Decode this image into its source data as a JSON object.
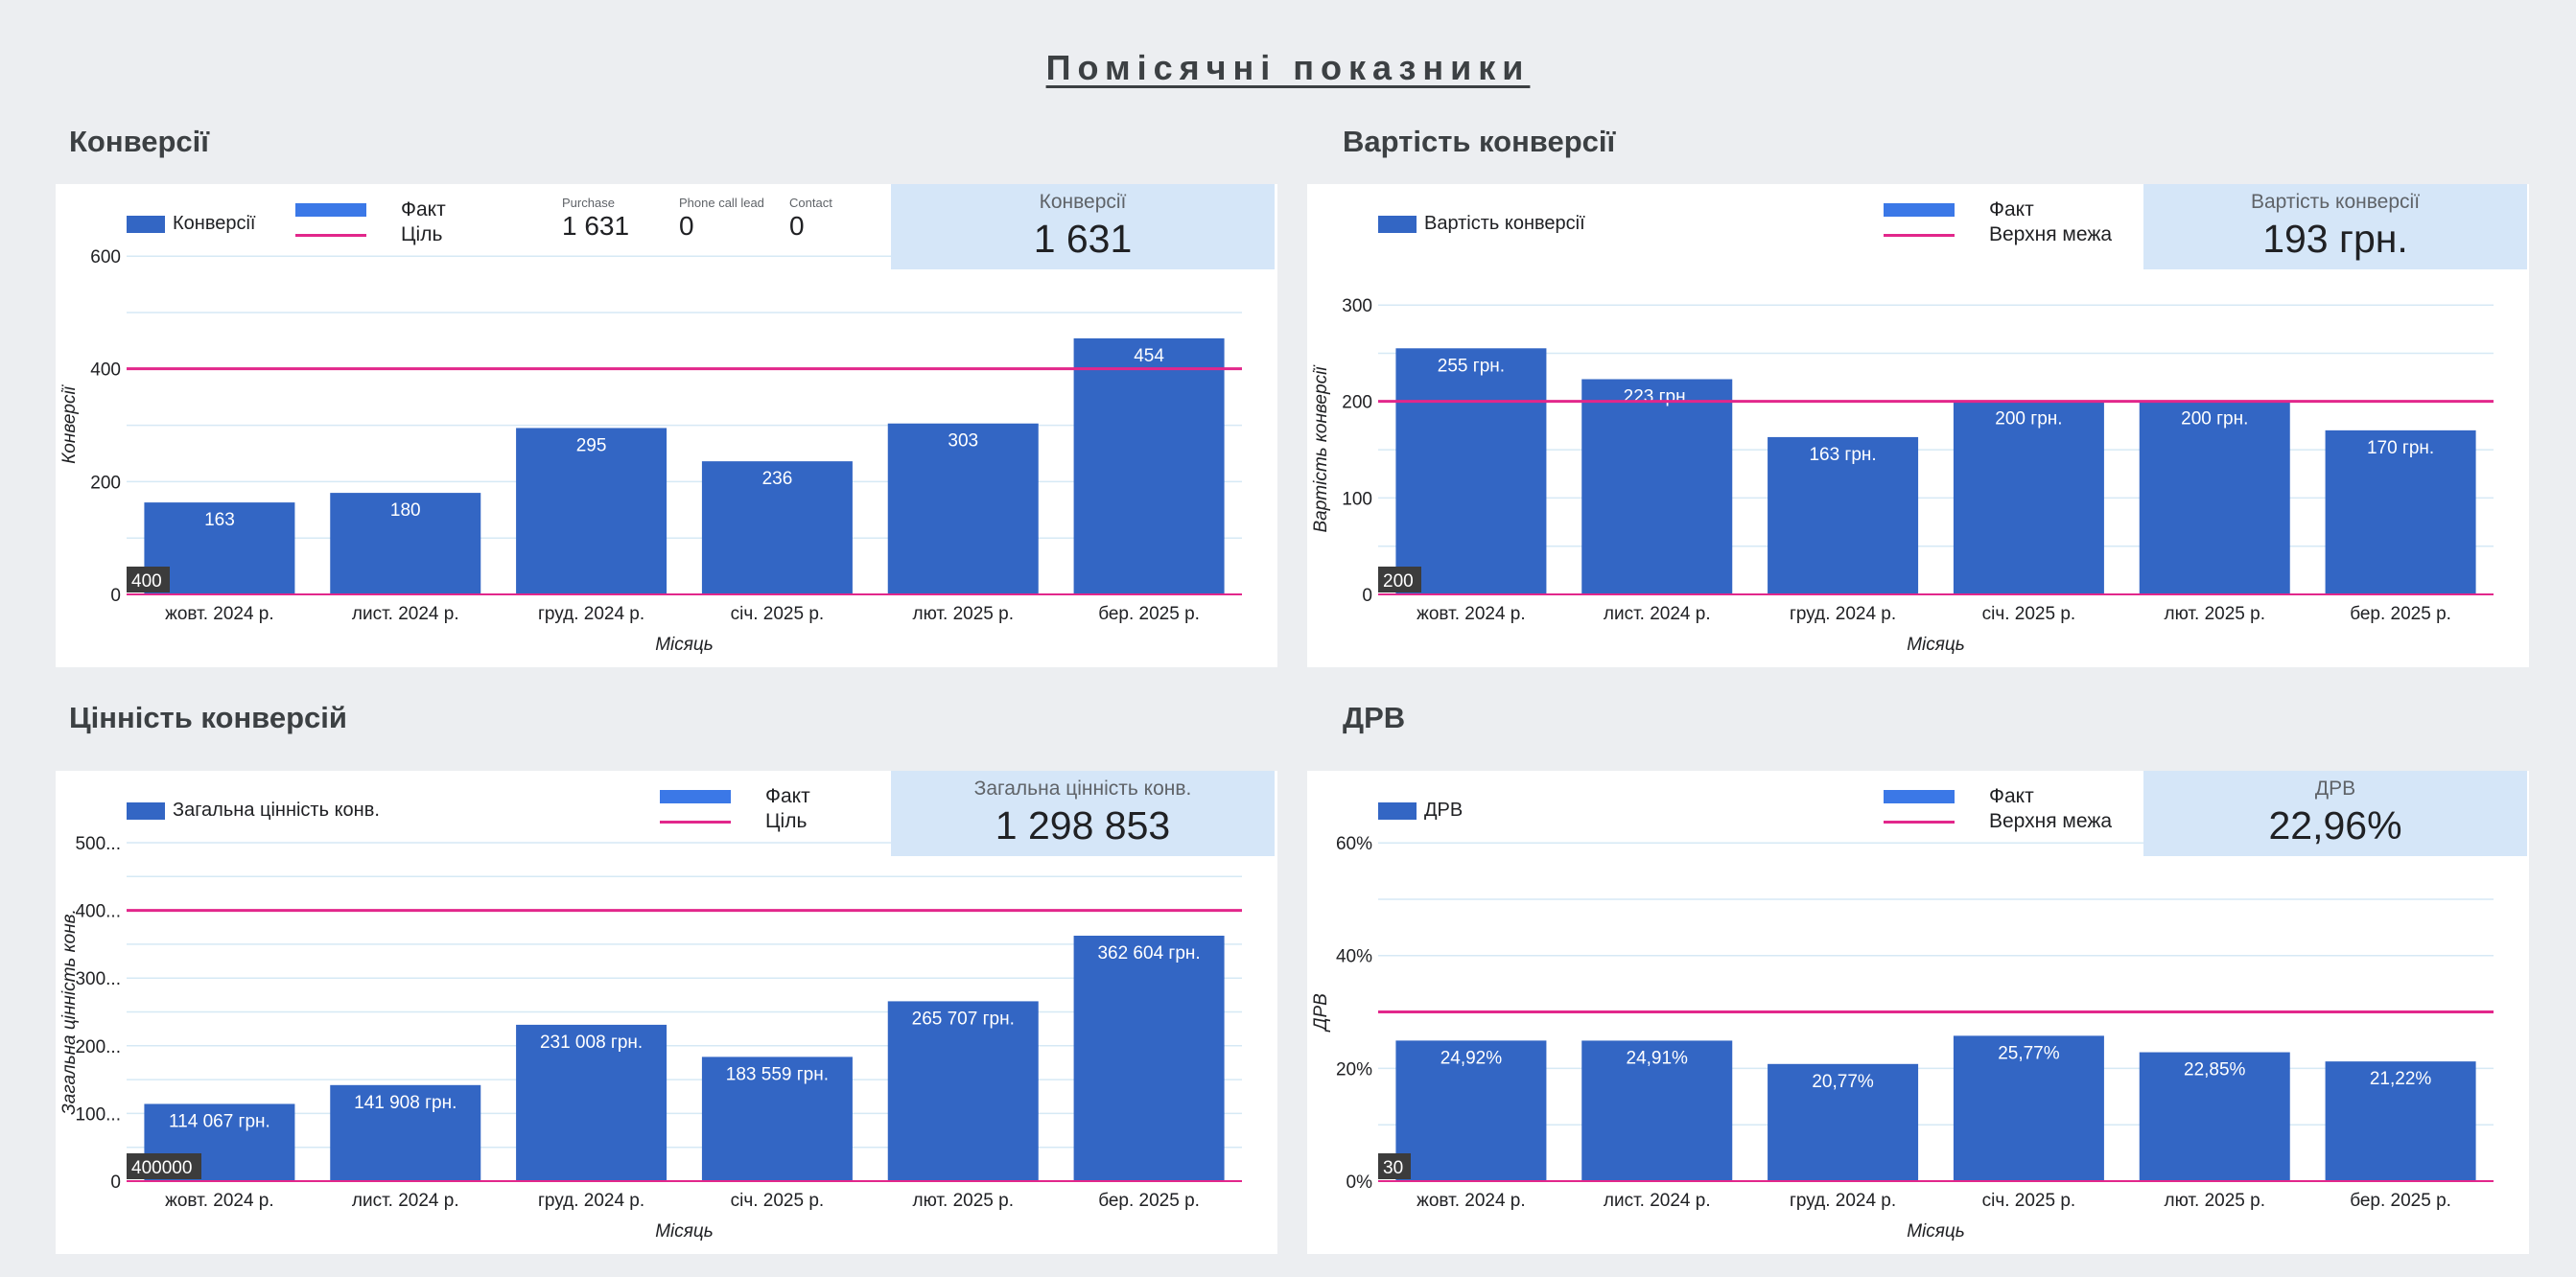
{
  "page_title": "Помісячні показники",
  "colors": {
    "bar": "#3366c4",
    "bar_legend": "#3b78e7",
    "ref_line": "#e2278b",
    "grid": "#d6e9f5",
    "scorecard_bg": "#d5e6f8",
    "badge_bg": "#3c3c3c"
  },
  "chart_data": [
    {
      "id": "conv",
      "type": "bar",
      "title": "Конверсії",
      "series_legend": "Конверсії",
      "legend_bar": "Факт",
      "legend_line": "Ціль",
      "categories": [
        "жовт. 2024 р.",
        "лист. 2024 р.",
        "груд. 2024 р.",
        "січ. 2025 р.",
        "лют. 2025 р.",
        "бер. 2025 р."
      ],
      "values": [
        163,
        180,
        295,
        236,
        303,
        454
      ],
      "value_labels": [
        "163",
        "180",
        "295",
        "236",
        "303",
        "454"
      ],
      "reference_value": 400,
      "reference_label": "400",
      "ylim": [
        0,
        600
      ],
      "y_ticks": [
        0,
        200,
        400,
        600
      ],
      "y_tick_labels": [
        "0",
        "200",
        "400",
        "600"
      ],
      "xlabel": "Місяць",
      "ylabel": "Конверсії",
      "scorecard": {
        "label": "Конверсії",
        "value": "1 631"
      },
      "mini_metrics": [
        {
          "label": "Purchase",
          "value": "1 631"
        },
        {
          "label": "Phone call lead",
          "value": "0"
        },
        {
          "label": "Contact",
          "value": "0"
        }
      ],
      "grid": true
    },
    {
      "id": "cost",
      "type": "bar",
      "title": "Вартість конверсії",
      "series_legend": "Вартість конверсії",
      "legend_bar": "Факт",
      "legend_line": "Верхня межа",
      "categories": [
        "жовт. 2024 р.",
        "лист. 2024 р.",
        "груд. 2024 р.",
        "січ. 2025 р.",
        "лют. 2025 р.",
        "бер. 2025 р."
      ],
      "values": [
        255,
        223,
        163,
        200,
        200,
        170
      ],
      "value_labels": [
        "255 грн.",
        "223 грн.",
        "163 грн.",
        "200 грн.",
        "200 грн.",
        "170 грн."
      ],
      "reference_value": 200,
      "reference_label": "200",
      "ylim": [
        0,
        300
      ],
      "y_ticks": [
        0,
        100,
        200,
        300
      ],
      "y_tick_labels": [
        "0",
        "100",
        "200",
        "300"
      ],
      "xlabel": "Місяць",
      "ylabel": "Вартість конверсії",
      "scorecard": {
        "label": "Вартість конверсії",
        "value": "193 грн."
      },
      "grid": true
    },
    {
      "id": "value",
      "type": "bar",
      "title": "Цінність конверсій",
      "series_legend": "Загальна цінність конв.",
      "legend_bar": "Факт",
      "legend_line": "Ціль",
      "categories": [
        "жовт. 2024 р.",
        "лист. 2024 р.",
        "груд. 2024 р.",
        "січ. 2025 р.",
        "лют. 2025 р.",
        "бер. 2025 р."
      ],
      "values": [
        114067,
        141908,
        231008,
        183559,
        265707,
        362604
      ],
      "value_labels": [
        "114 067 грн.",
        "141 908 грн.",
        "231 008 грн.",
        "183 559 грн.",
        "265 707 грн.",
        "362 604 грн."
      ],
      "reference_value": 400000,
      "reference_label": "400000",
      "ylim": [
        0,
        500000
      ],
      "y_ticks": [
        0,
        100000,
        200000,
        300000,
        400000,
        500000
      ],
      "y_tick_labels": [
        "0",
        "100...",
        "200...",
        "300...",
        "400...",
        "500..."
      ],
      "xlabel": "Місяць",
      "ylabel": "Загальна цінність конв.",
      "scorecard": {
        "label": "Загальна цінність конв.",
        "value": "1 298 853"
      },
      "grid": true
    },
    {
      "id": "roas",
      "type": "bar",
      "title": "ДРВ",
      "series_legend": "ДРВ",
      "legend_bar": "Факт",
      "legend_line": "Верхня межа",
      "categories": [
        "жовт. 2024 р.",
        "лист. 2024 р.",
        "груд. 2024 р.",
        "січ. 2025 р.",
        "лют. 2025 р.",
        "бер. 2025 р."
      ],
      "values": [
        24.92,
        24.91,
        20.77,
        25.77,
        22.85,
        21.22
      ],
      "value_labels": [
        "24,92%",
        "24,91%",
        "20,77%",
        "25,77%",
        "22,85%",
        "21,22%"
      ],
      "reference_value": 30,
      "reference_label": "30",
      "ylim": [
        0,
        60
      ],
      "y_ticks": [
        0,
        20,
        40,
        60
      ],
      "y_tick_labels": [
        "0%",
        "20%",
        "40%",
        "60%"
      ],
      "xlabel": "Місяць",
      "ylabel": "ДРВ",
      "scorecard": {
        "label": "ДРВ",
        "value": "22,96%"
      },
      "grid": true
    }
  ]
}
